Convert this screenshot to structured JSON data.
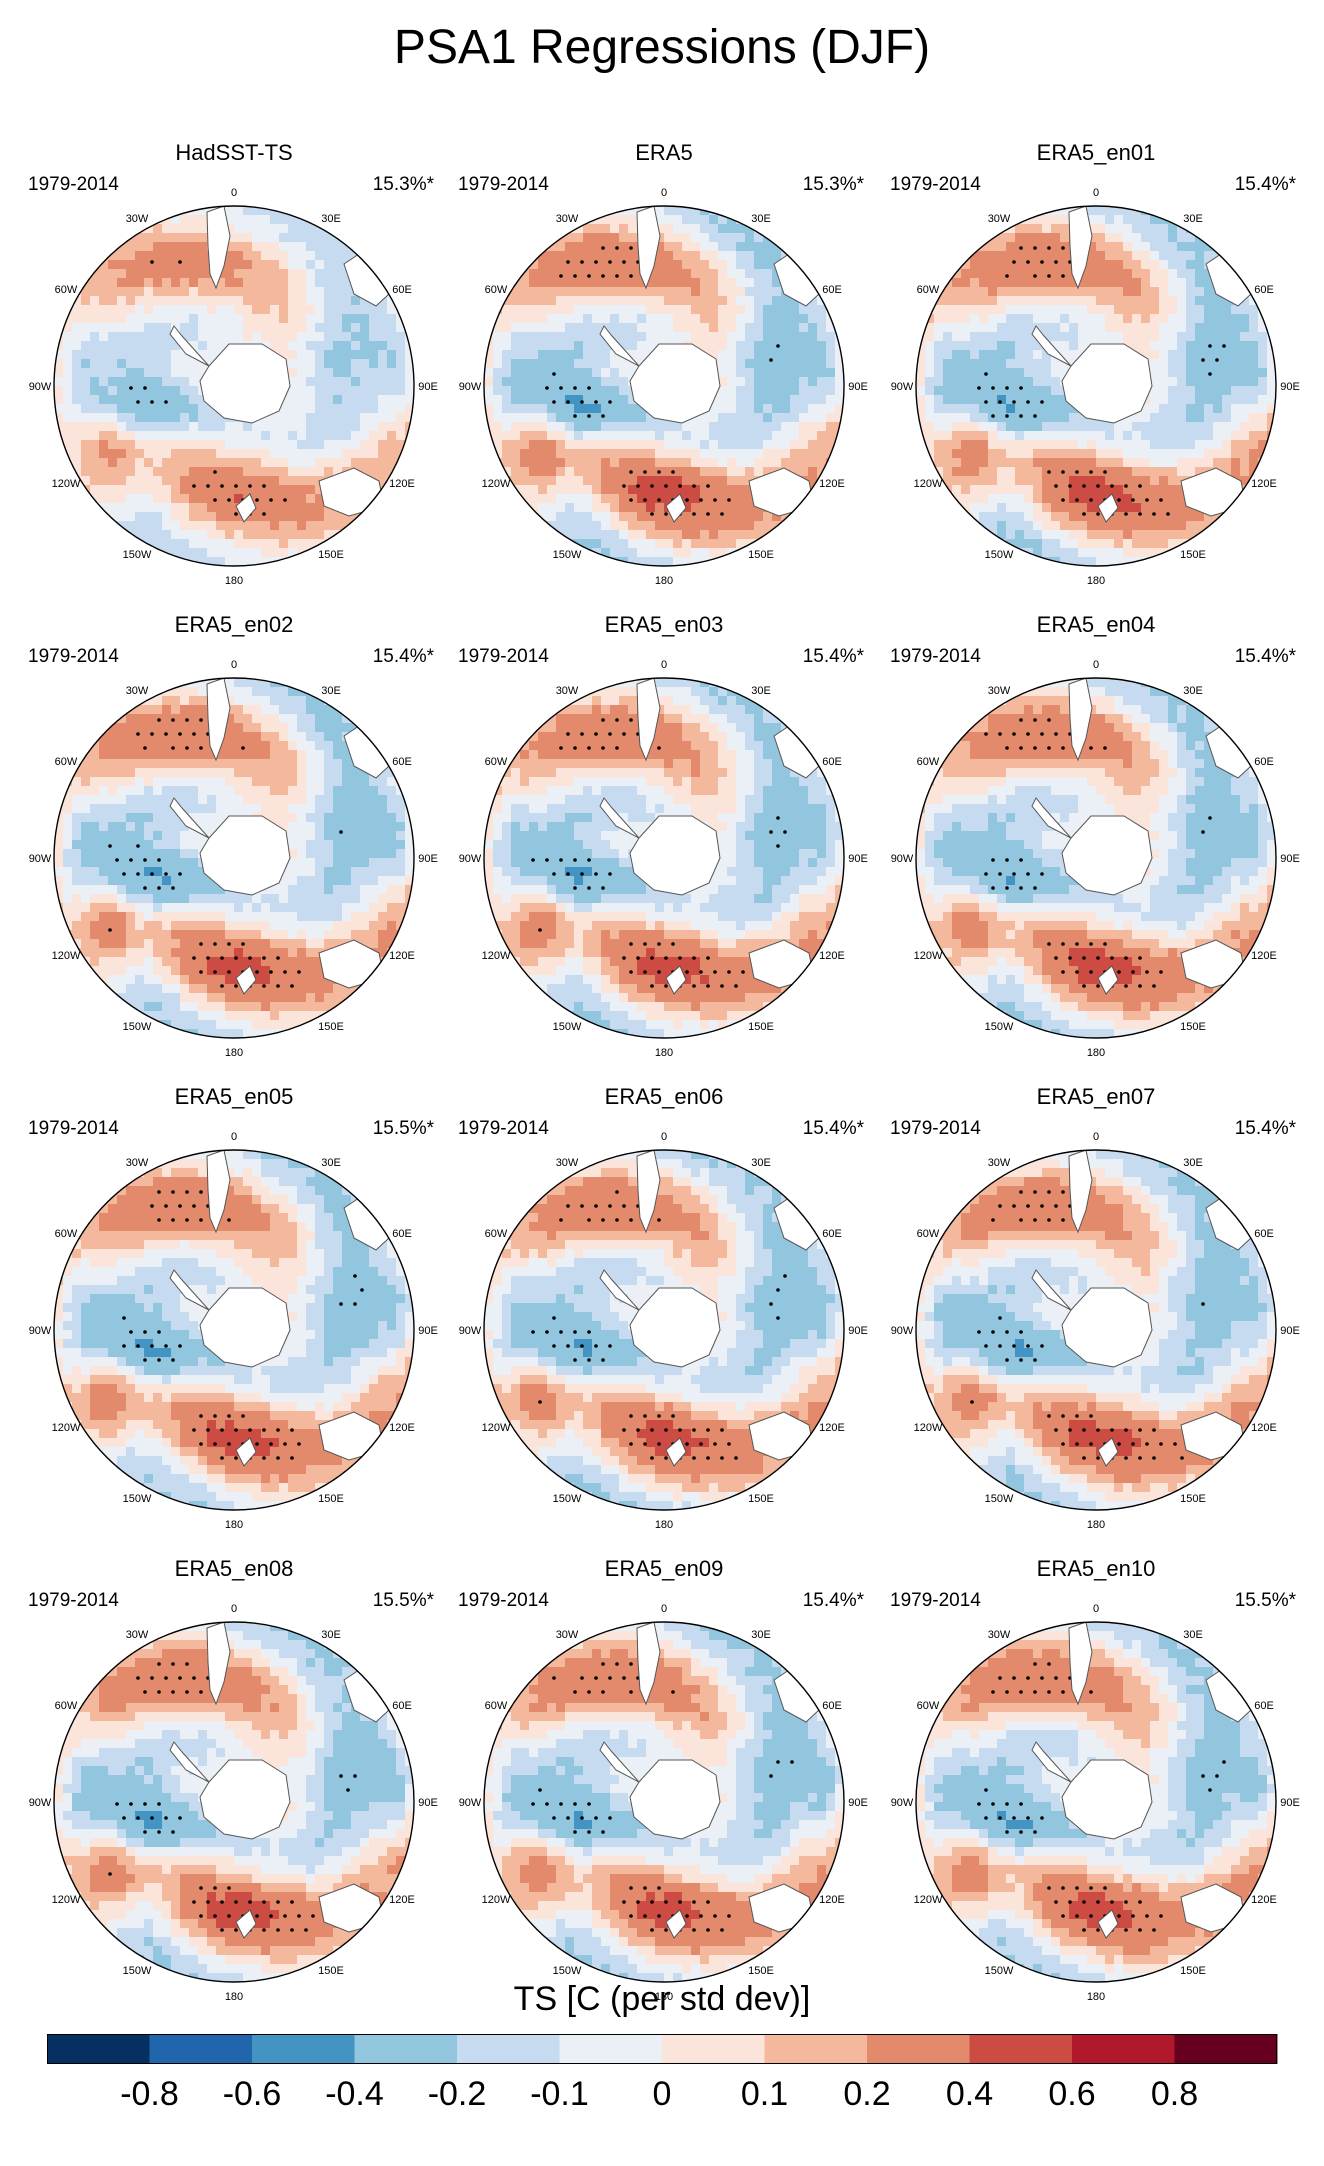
{
  "title": "PSA1 Regressions (DJF)",
  "panels": [
    {
      "name": "HadSST-TS",
      "period": "1979-2014",
      "pct": "15.3%*",
      "style": "had"
    },
    {
      "name": "ERA5",
      "period": "1979-2014",
      "pct": "15.3%*",
      "style": "era"
    },
    {
      "name": "ERA5_en01",
      "period": "1979-2014",
      "pct": "15.4%*",
      "style": "era"
    },
    {
      "name": "ERA5_en02",
      "period": "1979-2014",
      "pct": "15.4%*",
      "style": "era"
    },
    {
      "name": "ERA5_en03",
      "period": "1979-2014",
      "pct": "15.4%*",
      "style": "era"
    },
    {
      "name": "ERA5_en04",
      "period": "1979-2014",
      "pct": "15.4%*",
      "style": "era"
    },
    {
      "name": "ERA5_en05",
      "period": "1979-2014",
      "pct": "15.5%*",
      "style": "era"
    },
    {
      "name": "ERA5_en06",
      "period": "1979-2014",
      "pct": "15.4%*",
      "style": "era"
    },
    {
      "name": "ERA5_en07",
      "period": "1979-2014",
      "pct": "15.4%*",
      "style": "era"
    },
    {
      "name": "ERA5_en08",
      "period": "1979-2014",
      "pct": "15.5%*",
      "style": "era"
    },
    {
      "name": "ERA5_en09",
      "period": "1979-2014",
      "pct": "15.4%*",
      "style": "era"
    },
    {
      "name": "ERA5_en10",
      "period": "1979-2014",
      "pct": "15.5%*",
      "style": "era"
    }
  ],
  "map": {
    "longitude_labels": [
      "0",
      "30E",
      "60E",
      "90E",
      "120E",
      "150E",
      "180",
      "150W",
      "120W",
      "90W",
      "60W",
      "30W"
    ]
  },
  "colorbar": {
    "title": "TS [C (per std dev)]",
    "tick_labels": [
      "-0.8",
      "-0.6",
      "-0.4",
      "-0.2",
      "-0.1",
      "0",
      "0.1",
      "0.2",
      "0.4",
      "0.6",
      "0.8"
    ],
    "colors": [
      "#053061",
      "#2166ac",
      "#4393c3",
      "#92c5de",
      "#c6dbef",
      "#eaf0f6",
      "#fbe5db",
      "#f4b89c",
      "#e48a6c",
      "#cc4c43",
      "#b2182b",
      "#67001f"
    ]
  }
}
